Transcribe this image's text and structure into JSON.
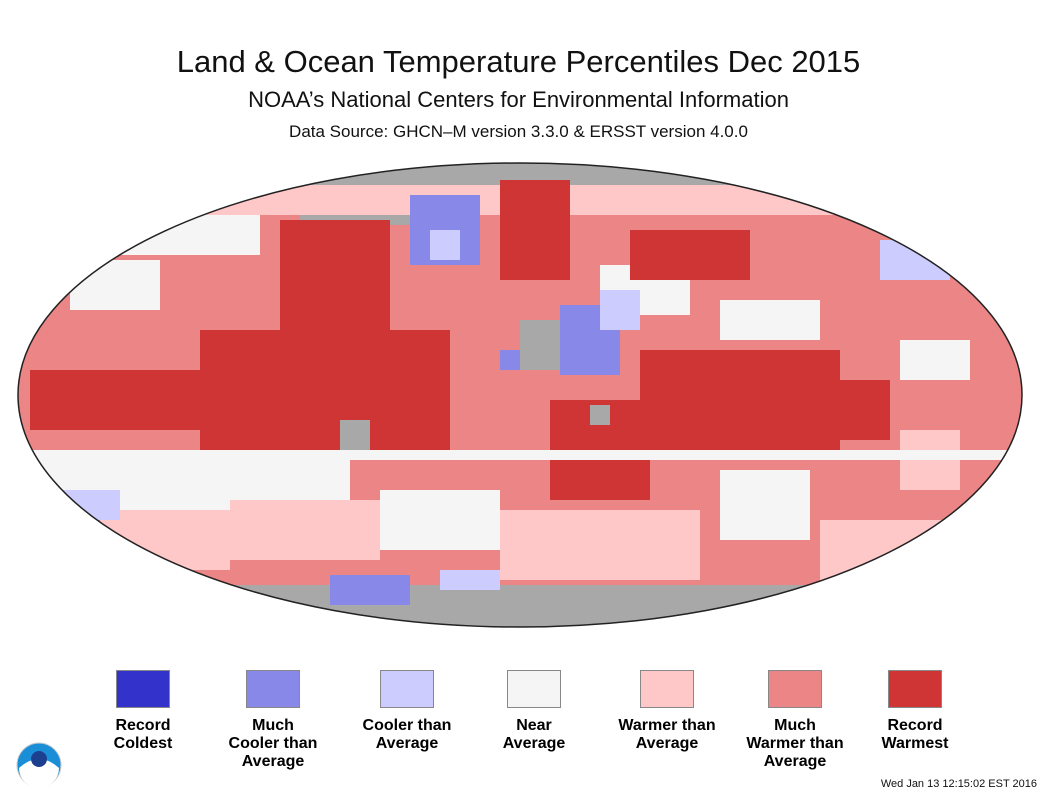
{
  "header": {
    "title": "Land & Ocean Temperature Percentiles Dec 2015",
    "subtitle": "NOAA’s National Centers for Environmental Information",
    "source": "Data Source: GHCN–M version 3.3.0 & ERSST version 4.0.0"
  },
  "map": {
    "projection": "Robinson",
    "missing_data_color": "#a8a8a8",
    "dominant_category": "Much Warmer than Average"
  },
  "legend": [
    {
      "l1": "Record",
      "l2": "Coldest",
      "l3": "",
      "color": "#3333cc"
    },
    {
      "l1": "Much",
      "l2": "Cooler than",
      "l3": "Average",
      "color": "#8888e8"
    },
    {
      "l1": "Cooler than",
      "l2": "Average",
      "l3": "",
      "color": "#ccccff"
    },
    {
      "l1": "Near",
      "l2": "Average",
      "l3": "",
      "color": "#f5f5f5"
    },
    {
      "l1": "Warmer than",
      "l2": "Average",
      "l3": "",
      "color": "#ffc8c8"
    },
    {
      "l1": "Much",
      "l2": "Warmer than",
      "l3": "Average",
      "color": "#ec8585"
    },
    {
      "l1": "Record",
      "l2": "Warmest",
      "l3": "",
      "color": "#d03535"
    }
  ],
  "logo": "NOAA",
  "timestamp": "Wed Jan 13 12:15:02 EST 2016"
}
